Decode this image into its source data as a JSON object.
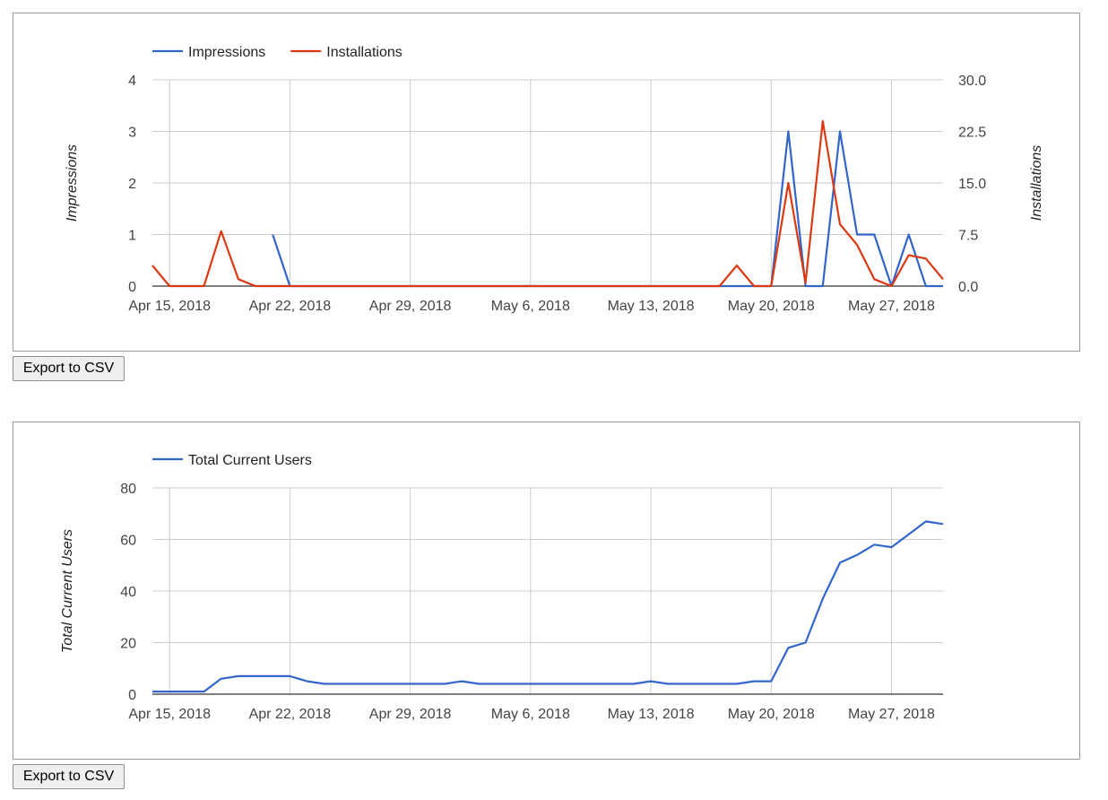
{
  "export_label": "Export to CSV",
  "chart_data": [
    {
      "type": "line",
      "legend_position": "top-left",
      "grid": true,
      "x_axis": {
        "type": "date",
        "ticks": [
          "Apr 15, 2018",
          "Apr 22, 2018",
          "Apr 29, 2018",
          "May 6, 2018",
          "May 13, 2018",
          "May 20, 2018",
          "May 27, 2018"
        ],
        "range": [
          "2018-04-14",
          "2018-05-30"
        ]
      },
      "left_axis": {
        "label": "Impressions",
        "range": [
          0,
          4
        ],
        "ticks": [
          "0",
          "1",
          "2",
          "3",
          "4"
        ]
      },
      "right_axis": {
        "label": "Installations",
        "range": [
          0,
          30
        ],
        "ticks": [
          "0.0",
          "7.5",
          "15.0",
          "22.5",
          "30.0"
        ]
      },
      "series": [
        {
          "name": "Impressions",
          "color": "#3366cc",
          "axis": "left",
          "points": [
            [
              "2018-04-21",
              1
            ],
            [
              "2018-04-22",
              0
            ],
            [
              "2018-05-20",
              0
            ],
            [
              "2018-05-21",
              3
            ],
            [
              "2018-05-22",
              0
            ],
            [
              "2018-05-23",
              0
            ],
            [
              "2018-05-24",
              3
            ],
            [
              "2018-05-25",
              1
            ],
            [
              "2018-05-26",
              1
            ],
            [
              "2018-05-27",
              0
            ],
            [
              "2018-05-28",
              1
            ],
            [
              "2018-05-29",
              0
            ],
            [
              "2018-05-30",
              0
            ]
          ]
        },
        {
          "name": "Installations",
          "color": "#dc3912",
          "axis": "right",
          "points": [
            [
              "2018-04-14",
              3
            ],
            [
              "2018-04-15",
              0
            ],
            [
              "2018-04-16",
              0
            ],
            [
              "2018-04-17",
              0
            ],
            [
              "2018-04-18",
              8
            ],
            [
              "2018-04-19",
              1
            ],
            [
              "2018-04-20",
              0
            ],
            [
              "2018-04-21",
              0
            ],
            [
              "2018-04-22",
              0
            ],
            [
              "2018-05-17",
              0
            ],
            [
              "2018-05-18",
              3
            ],
            [
              "2018-05-19",
              0
            ],
            [
              "2018-05-20",
              0
            ],
            [
              "2018-05-21",
              15
            ],
            [
              "2018-05-22",
              0.5
            ],
            [
              "2018-05-23",
              24
            ],
            [
              "2018-05-24",
              9
            ],
            [
              "2018-05-25",
              6
            ],
            [
              "2018-05-26",
              1
            ],
            [
              "2018-05-27",
              0
            ],
            [
              "2018-05-28",
              4.5
            ],
            [
              "2018-05-29",
              4
            ],
            [
              "2018-05-30",
              1
            ]
          ]
        }
      ]
    },
    {
      "type": "line",
      "legend_position": "top-left",
      "grid": true,
      "x_axis": {
        "type": "date",
        "ticks": [
          "Apr 15, 2018",
          "Apr 22, 2018",
          "Apr 29, 2018",
          "May 6, 2018",
          "May 13, 2018",
          "May 20, 2018",
          "May 27, 2018"
        ],
        "range": [
          "2018-04-14",
          "2018-05-30"
        ]
      },
      "left_axis": {
        "label": "Total Current Users",
        "range": [
          0,
          80
        ],
        "ticks": [
          "0",
          "20",
          "40",
          "60",
          "80"
        ]
      },
      "series": [
        {
          "name": "Total Current Users",
          "color": "#3366cc",
          "axis": "left",
          "points": [
            [
              "2018-04-14",
              1
            ],
            [
              "2018-04-15",
              1
            ],
            [
              "2018-04-16",
              1
            ],
            [
              "2018-04-17",
              1
            ],
            [
              "2018-04-18",
              6
            ],
            [
              "2018-04-19",
              7
            ],
            [
              "2018-04-20",
              7
            ],
            [
              "2018-04-21",
              7
            ],
            [
              "2018-04-22",
              7
            ],
            [
              "2018-04-23",
              5
            ],
            [
              "2018-04-24",
              4
            ],
            [
              "2018-04-28",
              4
            ],
            [
              "2018-05-01",
              4
            ],
            [
              "2018-05-02",
              5
            ],
            [
              "2018-05-03",
              4
            ],
            [
              "2018-05-11",
              4
            ],
            [
              "2018-05-12",
              4
            ],
            [
              "2018-05-13",
              5
            ],
            [
              "2018-05-14",
              4
            ],
            [
              "2018-05-18",
              4
            ],
            [
              "2018-05-19",
              5
            ],
            [
              "2018-05-20",
              5
            ],
            [
              "2018-05-21",
              18
            ],
            [
              "2018-05-22",
              20
            ],
            [
              "2018-05-23",
              37
            ],
            [
              "2018-05-24",
              51
            ],
            [
              "2018-05-25",
              54
            ],
            [
              "2018-05-26",
              58
            ],
            [
              "2018-05-27",
              57
            ],
            [
              "2018-05-28",
              62
            ],
            [
              "2018-05-29",
              67
            ],
            [
              "2018-05-30",
              66
            ]
          ]
        }
      ]
    }
  ]
}
